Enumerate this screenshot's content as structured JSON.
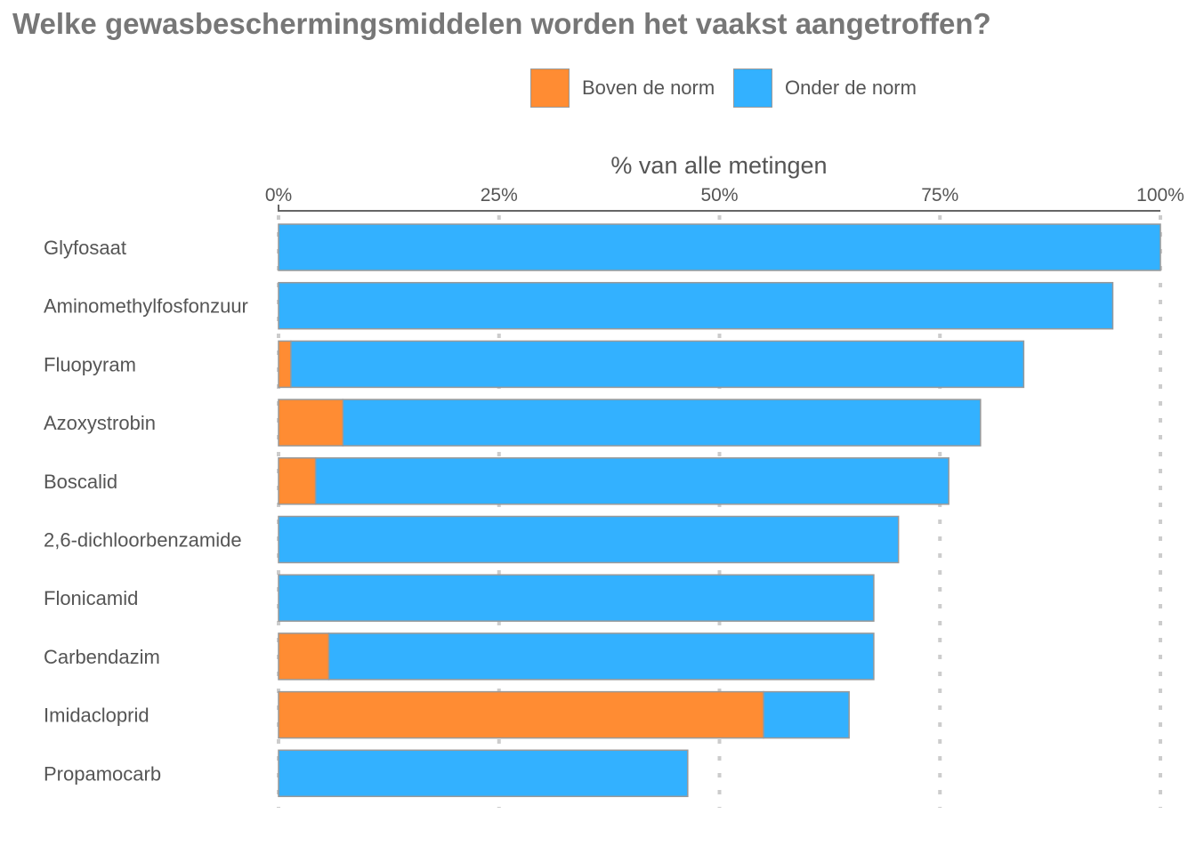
{
  "chart_data": {
    "type": "bar",
    "orientation": "horizontal",
    "stacked": true,
    "title": "Welke gewasbeschermingsmiddelen worden het vaakst aangetroffen?",
    "xlabel": "% van alle metingen",
    "xlim": [
      0,
      100
    ],
    "xticks": [
      "0%",
      "25%",
      "50%",
      "75%",
      "100%"
    ],
    "xtick_values": [
      0,
      25,
      50,
      75,
      100
    ],
    "grid": "vertical dotted",
    "legend_position": "top",
    "categories": [
      "Glyfosaat",
      "Aminomethylfosfonzuur",
      "Fluopyram",
      "Azoxystrobin",
      "Boscalid",
      "2,6-dichloorbenzamide",
      "Flonicamid",
      "Carbendazim",
      "Imidacloprid",
      "Propamocarb"
    ],
    "series": [
      {
        "name": "Boven de norm",
        "color": "#ff8c33",
        "values": [
          0,
          0,
          1.4,
          7.3,
          4.2,
          0,
          0,
          5.7,
          55.0,
          0
        ]
      },
      {
        "name": "Onder de norm",
        "color": "#33b1ff",
        "values": [
          100,
          94.6,
          83.1,
          72.3,
          71.8,
          70.3,
          67.5,
          61.8,
          9.7,
          46.4
        ]
      }
    ]
  }
}
